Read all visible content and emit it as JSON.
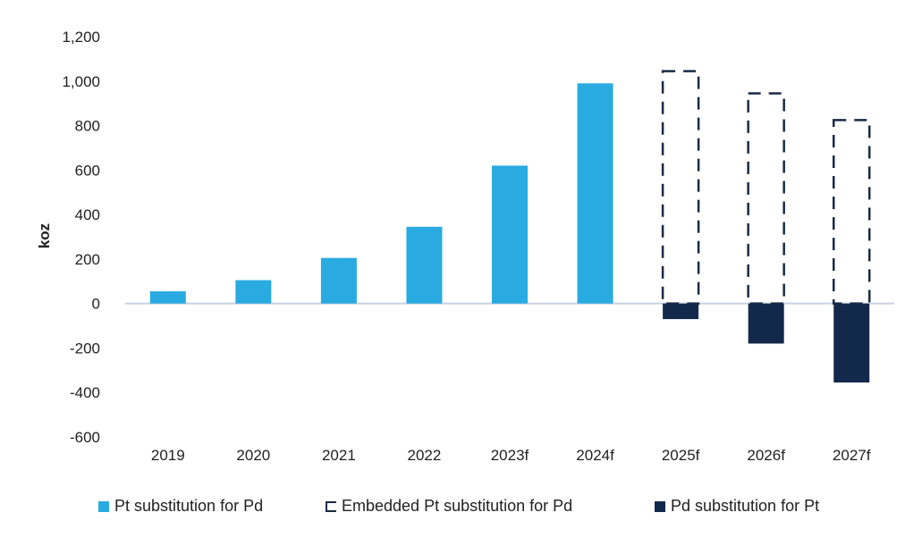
{
  "chart_data": {
    "type": "bar",
    "categories": [
      "2019",
      "2020",
      "2021",
      "2022",
      "2023f",
      "2024f",
      "2025f",
      "2026f",
      "2027f"
    ],
    "series": [
      {
        "name": "Pt substitution for Pd",
        "style": "solid",
        "color": "#29aae1",
        "values": [
          55,
          105,
          205,
          345,
          620,
          990,
          null,
          null,
          null
        ]
      },
      {
        "name": "Embedded Pt substitution for Pd",
        "style": "dashed",
        "color": "#1a2a44",
        "values": [
          null,
          null,
          null,
          null,
          null,
          null,
          1045,
          945,
          825
        ]
      },
      {
        "name": "Pd substitution for Pt",
        "style": "solid",
        "color": "#13294b",
        "values": [
          null,
          null,
          null,
          null,
          null,
          null,
          -70,
          -180,
          -355
        ]
      }
    ],
    "ylabel": "koz",
    "ylim": [
      -600,
      1200
    ],
    "yticks": [
      "1,200",
      "1,000",
      "800",
      "600",
      "400",
      "200",
      "0",
      "-200",
      "-400",
      "-600"
    ],
    "ytick_values": [
      1200,
      1000,
      800,
      600,
      400,
      200,
      0,
      -200,
      -400,
      -600
    ],
    "grid": false,
    "legend_position": "bottom"
  }
}
